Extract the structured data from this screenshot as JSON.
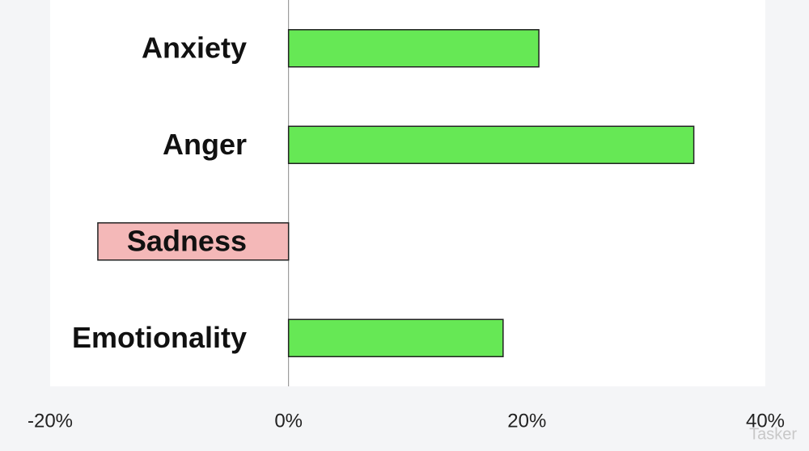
{
  "chart_data": {
    "type": "bar",
    "orientation": "horizontal",
    "categories": [
      "Anxiety",
      "Anger",
      "Sadness",
      "Emotionality"
    ],
    "values": [
      21,
      34,
      -16,
      18
    ],
    "colors": [
      "#66e855",
      "#66e855",
      "#f4b8b8",
      "#66e855"
    ],
    "xlim": [
      -20,
      40
    ],
    "xticks": [
      {
        "value": -20,
        "label": "-20%"
      },
      {
        "value": 0,
        "label": "0%"
      },
      {
        "value": 20,
        "label": "20%"
      },
      {
        "value": 40,
        "label": "40%"
      }
    ],
    "watermark": "Tasker"
  }
}
